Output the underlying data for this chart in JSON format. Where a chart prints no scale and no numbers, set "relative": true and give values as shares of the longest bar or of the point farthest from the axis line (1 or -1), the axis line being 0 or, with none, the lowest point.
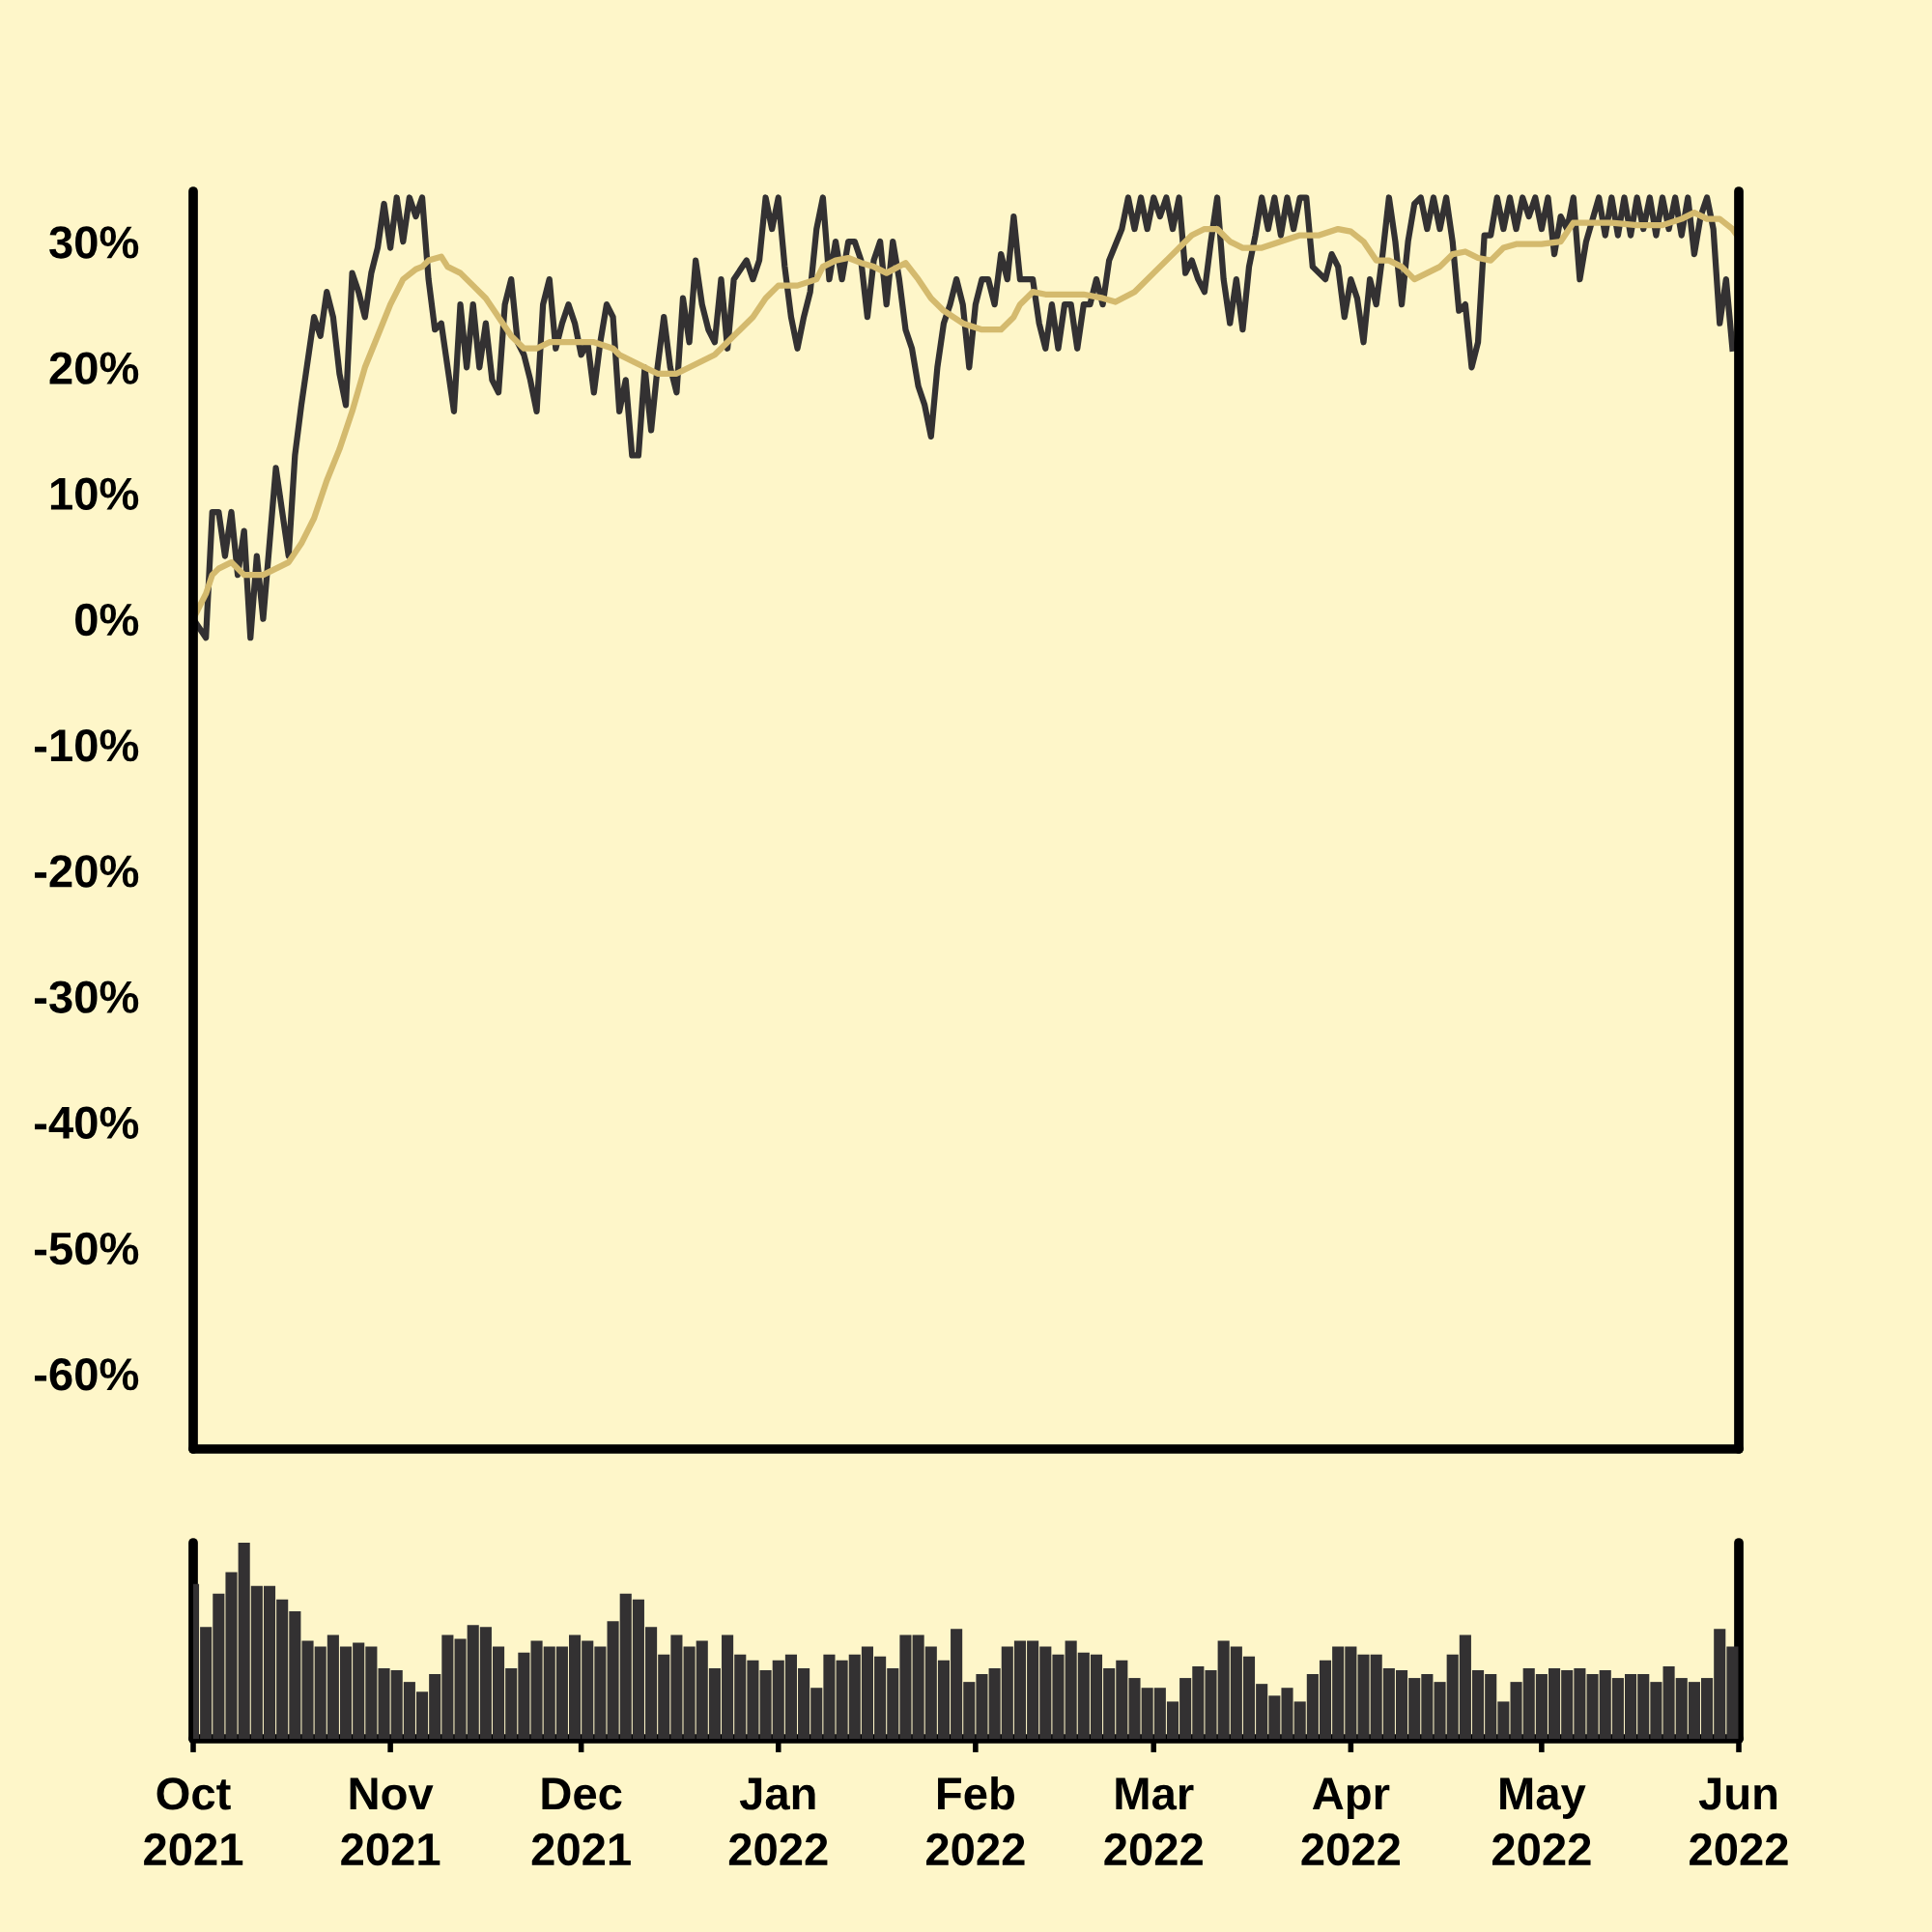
{
  "chart_data": [
    {
      "type": "line",
      "xlim": [
        "2021-10-01",
        "2022-06-01"
      ],
      "ylim": [
        -66,
        34
      ],
      "yticks": [
        {
          "value": -60,
          "label": "-60%"
        },
        {
          "value": -50,
          "label": "-50%"
        },
        {
          "value": -40,
          "label": "-40%"
        },
        {
          "value": -30,
          "label": "-30%"
        },
        {
          "value": -20,
          "label": "-20%"
        },
        {
          "value": -10,
          "label": "-10%"
        },
        {
          "value": 0,
          "label": "0%"
        },
        {
          "value": 10,
          "label": "10%"
        },
        {
          "value": 20,
          "label": "20%"
        },
        {
          "value": 30,
          "label": "30%"
        }
      ],
      "xticks": [
        {
          "value": "2021-10-01",
          "label": null
        },
        {
          "value": "2021-11-01",
          "label": null
        },
        {
          "value": "2021-12-01",
          "label": null
        },
        {
          "value": "2022-01-01",
          "label": null
        },
        {
          "value": "2022-02-01",
          "label": null
        },
        {
          "value": "2022-03-01",
          "label": null
        },
        {
          "value": "2022-04-01",
          "label": null
        },
        {
          "value": "2022-05-01",
          "label": null
        },
        {
          "value": "2022-06-01",
          "label": null
        }
      ],
      "tick_labels": "y",
      "grid": false,
      "marker": "none",
      "line_style": "solid",
      "series": [
        {
          "color": "#333132",
          "x": [
            "2021-10-01",
            "2021-10-03",
            "2021-10-04",
            "2021-10-05",
            "2021-10-06",
            "2021-10-07",
            "2021-10-08",
            "2021-10-09",
            "2021-10-10",
            "2021-10-11",
            "2021-10-12",
            "2021-10-14",
            "2021-10-16",
            "2021-10-17",
            "2021-10-18",
            "2021-10-20",
            "2021-10-21",
            "2021-10-22",
            "2021-10-23",
            "2021-10-24",
            "2021-10-25",
            "2021-10-26",
            "2021-10-27",
            "2021-10-28",
            "2021-10-29",
            "2021-10-30",
            "2021-10-31",
            "2021-11-01",
            "2021-11-02",
            "2021-11-03",
            "2021-11-04",
            "2021-11-05",
            "2021-11-06",
            "2021-11-07",
            "2021-11-08",
            "2021-11-09",
            "2021-11-11",
            "2021-11-12",
            "2021-11-13",
            "2021-11-14",
            "2021-11-15",
            "2021-11-16",
            "2021-11-17",
            "2021-11-18",
            "2021-11-19",
            "2021-11-20",
            "2021-11-21",
            "2021-11-22",
            "2021-11-23",
            "2021-11-24",
            "2021-11-25",
            "2021-11-26",
            "2021-11-27",
            "2021-11-28",
            "2021-11-29",
            "2021-11-30",
            "2021-12-01",
            "2021-12-02",
            "2021-12-03",
            "2021-12-04",
            "2021-12-05",
            "2021-12-06",
            "2021-12-07",
            "2021-12-08",
            "2021-12-09",
            "2021-12-10",
            "2021-12-11",
            "2021-12-12",
            "2021-12-13",
            "2021-12-14",
            "2021-12-15",
            "2021-12-16",
            "2021-12-17",
            "2021-12-18",
            "2021-12-19",
            "2021-12-20",
            "2021-12-21",
            "2021-12-22",
            "2021-12-23",
            "2021-12-24",
            "2021-12-25",
            "2021-12-27",
            "2021-12-28",
            "2021-12-29",
            "2021-12-30",
            "2021-12-31",
            "2022-01-01",
            "2022-01-02",
            "2022-01-03",
            "2022-01-04",
            "2022-01-05",
            "2022-01-06",
            "2022-01-07",
            "2022-01-08",
            "2022-01-09",
            "2022-01-10",
            "2022-01-11",
            "2022-01-12",
            "2022-01-13",
            "2022-01-14",
            "2022-01-15",
            "2022-01-16",
            "2022-01-17",
            "2022-01-18",
            "2022-01-19",
            "2022-01-20",
            "2022-01-21",
            "2022-01-22",
            "2022-01-23",
            "2022-01-24",
            "2022-01-25",
            "2022-01-26",
            "2022-01-27",
            "2022-01-28",
            "2022-01-29",
            "2022-01-30",
            "2022-01-31",
            "2022-02-01",
            "2022-02-02",
            "2022-02-03",
            "2022-02-04",
            "2022-02-05",
            "2022-02-06",
            "2022-02-07",
            "2022-02-08",
            "2022-02-09",
            "2022-02-10",
            "2022-02-11",
            "2022-02-12",
            "2022-02-13",
            "2022-02-14",
            "2022-02-15",
            "2022-02-16",
            "2022-02-17",
            "2022-02-18",
            "2022-02-19",
            "2022-02-20",
            "2022-02-21",
            "2022-02-22",
            "2022-02-24",
            "2022-02-25",
            "2022-02-26",
            "2022-02-27",
            "2022-02-28",
            "2022-03-01",
            "2022-03-02",
            "2022-03-03",
            "2022-03-04",
            "2022-03-05",
            "2022-03-06",
            "2022-03-07",
            "2022-03-08",
            "2022-03-09",
            "2022-03-10",
            "2022-03-11",
            "2022-03-12",
            "2022-03-13",
            "2022-03-14",
            "2022-03-15",
            "2022-03-16",
            "2022-03-17",
            "2022-03-18",
            "2022-03-19",
            "2022-03-20",
            "2022-03-21",
            "2022-03-22",
            "2022-03-23",
            "2022-03-24",
            "2022-03-25",
            "2022-03-26",
            "2022-03-28",
            "2022-03-29",
            "2022-03-30",
            "2022-03-31",
            "2022-04-01",
            "2022-04-02",
            "2022-04-03",
            "2022-04-04",
            "2022-04-05",
            "2022-04-06",
            "2022-04-07",
            "2022-04-08",
            "2022-04-09",
            "2022-04-10",
            "2022-04-11",
            "2022-04-12",
            "2022-04-13",
            "2022-04-14",
            "2022-04-15",
            "2022-04-16",
            "2022-04-17",
            "2022-04-18",
            "2022-04-19",
            "2022-04-20",
            "2022-04-21",
            "2022-04-22",
            "2022-04-23",
            "2022-04-24",
            "2022-04-25",
            "2022-04-26",
            "2022-04-27",
            "2022-04-28",
            "2022-04-29",
            "2022-04-30",
            "2022-05-01",
            "2022-05-02",
            "2022-05-03",
            "2022-05-04",
            "2022-05-05",
            "2022-05-06",
            "2022-05-07",
            "2022-05-08",
            "2022-05-10",
            "2022-05-11",
            "2022-05-12",
            "2022-05-13",
            "2022-05-14",
            "2022-05-15",
            "2022-05-16",
            "2022-05-17",
            "2022-05-18",
            "2022-05-19",
            "2022-05-20",
            "2022-05-21",
            "2022-05-22",
            "2022-05-23",
            "2022-05-24",
            "2022-05-25",
            "2022-05-26",
            "2022-05-27",
            "2022-05-28",
            "2022-05-29",
            "2022-05-30",
            "2022-05-31"
          ],
          "values": [
            0,
            -1.5,
            8.5,
            8.5,
            5,
            8.5,
            3.5,
            7,
            -1.5,
            5,
            0,
            12,
            5,
            13,
            17,
            24,
            22.5,
            26,
            24,
            19.5,
            17,
            27.5,
            26,
            24,
            27.5,
            29.5,
            33,
            29.5,
            33.5,
            30,
            33.5,
            32,
            33.5,
            27,
            23,
            23.5,
            16.5,
            25,
            20,
            25,
            20,
            23.5,
            19,
            18,
            25,
            27,
            22,
            21,
            19,
            16.5,
            25,
            27,
            21.5,
            23.5,
            25,
            23.5,
            21,
            22,
            18,
            22,
            25,
            24,
            16.5,
            19,
            13,
            13,
            20,
            15,
            20,
            24,
            20,
            18,
            25.5,
            22,
            28.5,
            25,
            23,
            22,
            27,
            21.5,
            27,
            28.5,
            27,
            28.5,
            33.5,
            31,
            33.5,
            28,
            24,
            21.5,
            24,
            26,
            31,
            33.5,
            27,
            30,
            27,
            30,
            30,
            28.5,
            24,
            28.5,
            30,
            25,
            30,
            27,
            23,
            21.5,
            18.5,
            17,
            14.5,
            20,
            23.5,
            25,
            27,
            25,
            20,
            25,
            27,
            27,
            25,
            29,
            27,
            32,
            27,
            27,
            27,
            23.5,
            21.5,
            25,
            21.5,
            25,
            25,
            21.5,
            25,
            25,
            27,
            25,
            28.5,
            31,
            33.5,
            31,
            33.5,
            31,
            33.5,
            32,
            33.5,
            31,
            33.5,
            27.5,
            28.5,
            27,
            26,
            30,
            33.5,
            27,
            23.5,
            27,
            23,
            28,
            30.5,
            33.5,
            31,
            33.5,
            30.5,
            33.5,
            31,
            33.5,
            33.5,
            28,
            27,
            29,
            28,
            24,
            27,
            25.5,
            22,
            27,
            25,
            29,
            33.5,
            30,
            25,
            30,
            33,
            33.5,
            31,
            33.5,
            31,
            33.5,
            30,
            24.5,
            25,
            20,
            22,
            30.5,
            30.5,
            33.5,
            31,
            33.5,
            31,
            33.5,
            32,
            33.5,
            31,
            33.5,
            29,
            32,
            31,
            33.5,
            27,
            30,
            33.5,
            30.5,
            33.5,
            30.5,
            33.5,
            30.5,
            33.5,
            31,
            33.5,
            30.5,
            33.5,
            31,
            33.5,
            30.5,
            33.5,
            29,
            32,
            33.5,
            31,
            23.5,
            27,
            21.5
          ]
        },
        {
          "color": "#d4ba6e",
          "x": [
            "2021-10-01",
            "2021-10-03",
            "2021-10-04",
            "2021-10-05",
            "2021-10-07",
            "2021-10-09",
            "2021-10-12",
            "2021-10-14",
            "2021-10-16",
            "2021-10-18",
            "2021-10-20",
            "2021-10-22",
            "2021-10-24",
            "2021-10-26",
            "2021-10-28",
            "2021-10-30",
            "2021-11-01",
            "2021-11-03",
            "2021-11-05",
            "2021-11-06",
            "2021-11-07",
            "2021-11-09",
            "2021-11-10",
            "2021-11-12",
            "2021-11-14",
            "2021-11-16",
            "2021-11-18",
            "2021-11-20",
            "2021-11-22",
            "2021-11-24",
            "2021-11-26",
            "2021-11-29",
            "2021-12-03",
            "2021-12-06",
            "2021-12-07",
            "2021-12-09",
            "2021-12-11",
            "2021-12-13",
            "2021-12-16",
            "2021-12-18",
            "2021-12-20",
            "2021-12-22",
            "2021-12-24",
            "2021-12-26",
            "2021-12-28",
            "2021-12-30",
            "2022-01-01",
            "2022-01-04",
            "2022-01-07",
            "2022-01-08",
            "2022-01-10",
            "2022-01-12",
            "2022-01-14",
            "2022-01-16",
            "2022-01-18",
            "2022-01-21",
            "2022-01-23",
            "2022-01-25",
            "2022-01-27",
            "2022-01-30",
            "2022-02-02",
            "2022-02-05",
            "2022-02-07",
            "2022-02-08",
            "2022-02-10",
            "2022-02-12",
            "2022-02-14",
            "2022-02-18",
            "2022-02-21",
            "2022-02-23",
            "2022-02-26",
            "2022-03-01",
            "2022-03-04",
            "2022-03-07",
            "2022-03-09",
            "2022-03-11",
            "2022-03-13",
            "2022-03-15",
            "2022-03-18",
            "2022-03-21",
            "2022-03-24",
            "2022-03-27",
            "2022-03-30",
            "2022-04-01",
            "2022-04-03",
            "2022-04-05",
            "2022-04-07",
            "2022-04-09",
            "2022-04-11",
            "2022-04-13",
            "2022-04-15",
            "2022-04-17",
            "2022-04-19",
            "2022-04-21",
            "2022-04-23",
            "2022-04-25",
            "2022-04-27",
            "2022-05-01",
            "2022-05-04",
            "2022-05-06",
            "2022-05-09",
            "2022-05-12",
            "2022-05-16",
            "2022-05-20",
            "2022-05-23",
            "2022-05-25",
            "2022-05-27",
            "2022-05-29",
            "2022-05-31",
            "2022-06-01"
          ],
          "values": [
            0,
            2,
            3.5,
            4,
            4.5,
            3.5,
            3.5,
            4,
            4.5,
            6,
            8,
            11,
            13.5,
            16.5,
            20,
            22.5,
            25,
            27,
            27.8,
            28,
            28.5,
            28.8,
            28,
            27.5,
            26.5,
            25.5,
            24,
            22.5,
            21.5,
            21.5,
            22,
            22,
            22,
            21.5,
            21,
            20.5,
            20,
            19.5,
            19.5,
            20,
            20.5,
            21,
            22,
            23,
            24,
            25.5,
            26.5,
            26.5,
            27,
            28,
            28.5,
            28.7,
            28.3,
            28,
            27.5,
            28.3,
            27,
            25.5,
            24.5,
            23.5,
            23,
            23,
            24,
            25,
            26,
            25.8,
            25.8,
            25.8,
            25.5,
            25.2,
            26,
            27.5,
            29,
            30.5,
            31,
            31,
            30,
            29.5,
            29.5,
            30,
            30.5,
            30.5,
            31,
            30.8,
            30,
            28.5,
            28.5,
            28,
            27,
            27.5,
            28,
            29,
            29.2,
            28.7,
            28.5,
            29.5,
            29.8,
            29.8,
            30,
            31.5,
            31.5,
            31.5,
            31.3,
            31.3,
            31.8,
            32.3,
            31.8,
            31.8,
            31,
            30.3
          ]
        }
      ]
    },
    {
      "type": "bar",
      "relative": true,
      "color": "#333132",
      "xlim": [
        "2021-10-01",
        "2022-06-01"
      ],
      "xticks": [
        {
          "value": "2021-10-01",
          "label": "Oct\n2021"
        },
        {
          "value": "2021-11-01",
          "label": "Nov\n2021"
        },
        {
          "value": "2021-12-01",
          "label": "Dec\n2021"
        },
        {
          "value": "2022-01-01",
          "label": "Jan\n2022"
        },
        {
          "value": "2022-02-01",
          "label": "Feb\n2022"
        },
        {
          "value": "2022-03-01",
          "label": "Mar\n2022"
        },
        {
          "value": "2022-04-01",
          "label": "Apr\n2022"
        },
        {
          "value": "2022-05-01",
          "label": "May\n2022"
        },
        {
          "value": "2022-06-01",
          "label": "Jun\n2022"
        }
      ],
      "tick_labels": "x",
      "grid": false,
      "x": [
        "2021-10-01",
        "2021-10-03",
        "2021-10-05",
        "2021-10-07",
        "2021-10-09",
        "2021-10-11",
        "2021-10-13",
        "2021-10-15",
        "2021-10-17",
        "2021-10-19",
        "2021-10-21",
        "2021-10-23",
        "2021-10-25",
        "2021-10-27",
        "2021-10-29",
        "2021-10-31",
        "2021-11-02",
        "2021-11-04",
        "2021-11-06",
        "2021-11-08",
        "2021-11-10",
        "2021-11-12",
        "2021-11-14",
        "2021-11-16",
        "2021-11-18",
        "2021-11-20",
        "2021-11-22",
        "2021-11-24",
        "2021-11-26",
        "2021-11-28",
        "2021-11-30",
        "2021-12-02",
        "2021-12-04",
        "2021-12-06",
        "2021-12-08",
        "2021-12-10",
        "2021-12-12",
        "2021-12-14",
        "2021-12-16",
        "2021-12-18",
        "2021-12-20",
        "2021-12-22",
        "2021-12-24",
        "2021-12-26",
        "2021-12-28",
        "2021-12-30",
        "2022-01-01",
        "2022-01-03",
        "2022-01-05",
        "2022-01-07",
        "2022-01-09",
        "2022-01-11",
        "2022-01-13",
        "2022-01-15",
        "2022-01-17",
        "2022-01-19",
        "2022-01-21",
        "2022-01-23",
        "2022-01-25",
        "2022-01-27",
        "2022-01-29",
        "2022-01-31",
        "2022-02-02",
        "2022-02-04",
        "2022-02-06",
        "2022-02-08",
        "2022-02-10",
        "2022-02-12",
        "2022-02-14",
        "2022-02-16",
        "2022-02-18",
        "2022-02-20",
        "2022-02-22",
        "2022-02-24",
        "2022-02-26",
        "2022-02-28",
        "2022-03-02",
        "2022-03-04",
        "2022-03-06",
        "2022-03-08",
        "2022-03-10",
        "2022-03-12",
        "2022-03-14",
        "2022-03-16",
        "2022-03-18",
        "2022-03-20",
        "2022-03-22",
        "2022-03-24",
        "2022-03-26",
        "2022-03-28",
        "2022-03-30",
        "2022-04-01",
        "2022-04-03",
        "2022-04-05",
        "2022-04-07",
        "2022-04-09",
        "2022-04-11",
        "2022-04-13",
        "2022-04-15",
        "2022-04-17",
        "2022-04-19",
        "2022-04-21",
        "2022-04-23",
        "2022-04-25",
        "2022-04-27",
        "2022-04-29",
        "2022-05-01",
        "2022-05-03",
        "2022-05-05",
        "2022-05-07",
        "2022-05-09",
        "2022-05-11",
        "2022-05-13",
        "2022-05-15",
        "2022-05-17",
        "2022-05-19",
        "2022-05-21",
        "2022-05-23",
        "2022-05-25",
        "2022-05-27",
        "2022-05-29",
        "2022-05-31"
      ],
      "values": [
        0.79,
        0.57,
        0.74,
        0.85,
        1,
        0.78,
        0.78,
        0.71,
        0.65,
        0.5,
        0.47,
        0.53,
        0.47,
        0.49,
        0.47,
        0.36,
        0.35,
        0.29,
        0.24,
        0.33,
        0.53,
        0.51,
        0.58,
        0.57,
        0.47,
        0.36,
        0.44,
        0.5,
        0.47,
        0.47,
        0.53,
        0.5,
        0.47,
        0.6,
        0.74,
        0.71,
        0.57,
        0.43,
        0.53,
        0.47,
        0.5,
        0.36,
        0.53,
        0.43,
        0.4,
        0.35,
        0.4,
        0.43,
        0.36,
        0.26,
        0.43,
        0.4,
        0.43,
        0.47,
        0.42,
        0.36,
        0.53,
        0.53,
        0.47,
        0.4,
        0.56,
        0.29,
        0.33,
        0.36,
        0.47,
        0.5,
        0.5,
        0.47,
        0.43,
        0.5,
        0.44,
        0.43,
        0.36,
        0.4,
        0.31,
        0.26,
        0.26,
        0.19,
        0.31,
        0.37,
        0.35,
        0.5,
        0.47,
        0.42,
        0.28,
        0.22,
        0.26,
        0.19,
        0.33,
        0.4,
        0.47,
        0.47,
        0.43,
        0.43,
        0.36,
        0.35,
        0.31,
        0.33,
        0.29,
        0.43,
        0.53,
        0.35,
        0.33,
        0.19,
        0.29,
        0.36,
        0.33,
        0.36,
        0.35,
        0.36,
        0.33,
        0.35,
        0.31,
        0.33,
        0.33,
        0.29,
        0.37,
        0.31,
        0.29,
        0.31,
        0.56,
        0.47
      ]
    }
  ]
}
